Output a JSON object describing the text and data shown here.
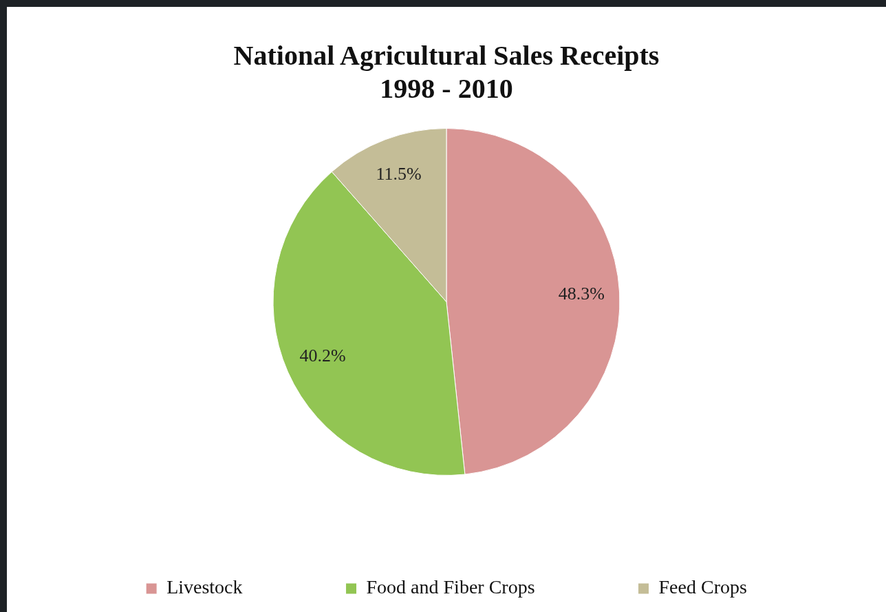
{
  "chart_data": {
    "type": "pie",
    "title": "National Agricultural Sales Receipts\n1998 - 2010",
    "categories": [
      "Livestock",
      "Food and Fiber Crops",
      "Feed Crops"
    ],
    "values": [
      48.3,
      40.2,
      11.5
    ],
    "colors": [
      "#d99594",
      "#92c553",
      "#c4bd97"
    ],
    "value_labels": [
      "48.3%",
      "40.2%",
      "11.5%"
    ],
    "legend": "bottom"
  }
}
